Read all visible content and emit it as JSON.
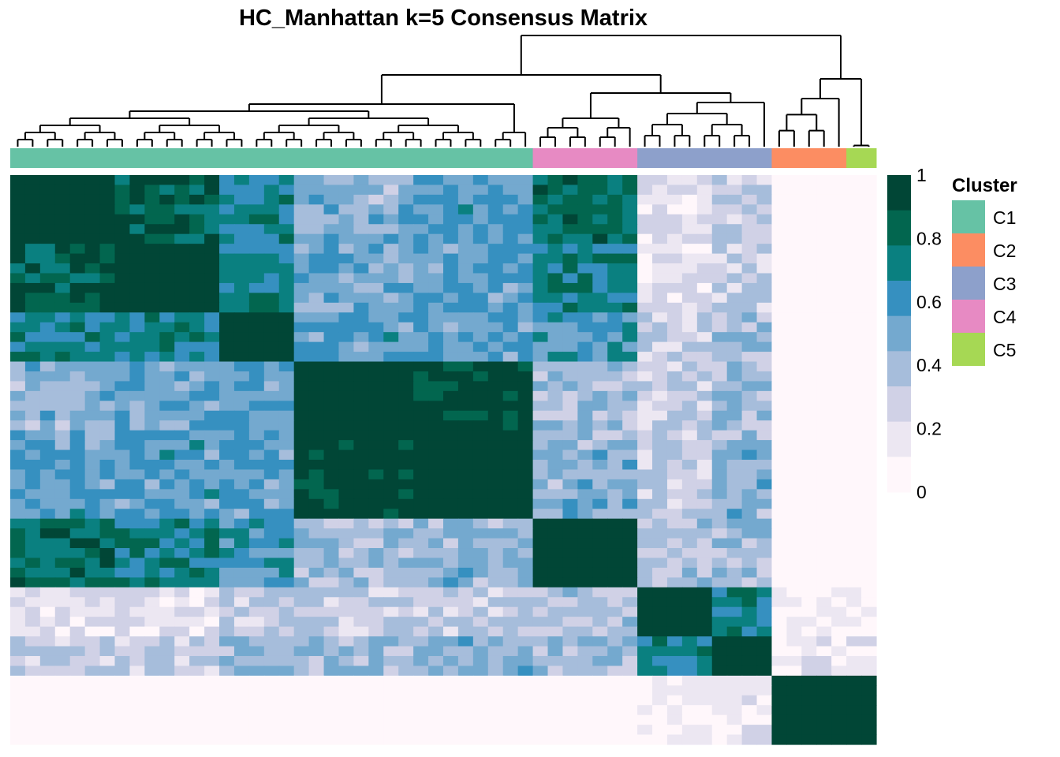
{
  "chart_data": {
    "type": "heatmap",
    "title": "HC_Manhattan k=5 Consensus Matrix",
    "colorbar": {
      "min": 0,
      "max": 1,
      "ticks": [
        "1",
        "0.8",
        "0.6",
        "0.4",
        "0.2",
        "0"
      ],
      "tick_values": [
        1,
        0.8,
        0.6,
        0.4,
        0.2,
        0
      ],
      "colors": [
        "#fff7fb",
        "#ece7f2",
        "#d0d1e6",
        "#a6bddb",
        "#74a9cf",
        "#3690c0",
        "#0a8080",
        "#02664f",
        "#014636"
      ]
    },
    "legend": {
      "title": "Cluster",
      "placement": "right",
      "entries": [
        {
          "label": "C1",
          "color": "#66C2A5"
        },
        {
          "label": "C2",
          "color": "#FC8D62"
        },
        {
          "label": "C3",
          "color": "#8DA0CB"
        },
        {
          "label": "C4",
          "color": "#E78AC3"
        },
        {
          "label": "C5",
          "color": "#A6D854"
        }
      ]
    },
    "column_annotation": [
      {
        "cluster": "C1",
        "count": 35
      },
      {
        "cluster": "C4",
        "count": 7
      },
      {
        "cluster": "C3",
        "count": 9
      },
      {
        "cluster": "C2",
        "count": 5
      },
      {
        "cluster": "C5",
        "count": 2
      }
    ],
    "consensus_blocks": [
      [
        1.0,
        0.85,
        0.7,
        0.45,
        0.55,
        0.8,
        0.2,
        0.3,
        0.0
      ],
      [
        0.85,
        1.0,
        0.7,
        0.5,
        0.55,
        0.7,
        0.2,
        0.3,
        0.0
      ],
      [
        0.7,
        0.7,
        1.0,
        0.55,
        0.55,
        0.6,
        0.3,
        0.4,
        0.0
      ],
      [
        0.45,
        0.5,
        0.55,
        1.0,
        0.95,
        0.4,
        0.3,
        0.4,
        0.0
      ],
      [
        0.55,
        0.55,
        0.55,
        0.95,
        1.0,
        0.45,
        0.3,
        0.45,
        0.0
      ],
      [
        0.8,
        0.7,
        0.6,
        0.4,
        0.45,
        1.0,
        0.35,
        0.4,
        0.0
      ],
      [
        0.2,
        0.2,
        0.3,
        0.3,
        0.3,
        0.35,
        1.0,
        0.7,
        0.1
      ],
      [
        0.3,
        0.3,
        0.4,
        0.4,
        0.45,
        0.4,
        0.7,
        1.0,
        0.15
      ],
      [
        0.0,
        0.0,
        0.0,
        0.0,
        0.0,
        0.0,
        0.1,
        0.15,
        1.0
      ]
    ],
    "block_sizes": [
      7,
      7,
      5,
      8,
      8,
      7,
      5,
      4,
      7
    ],
    "singletons": 0
  }
}
